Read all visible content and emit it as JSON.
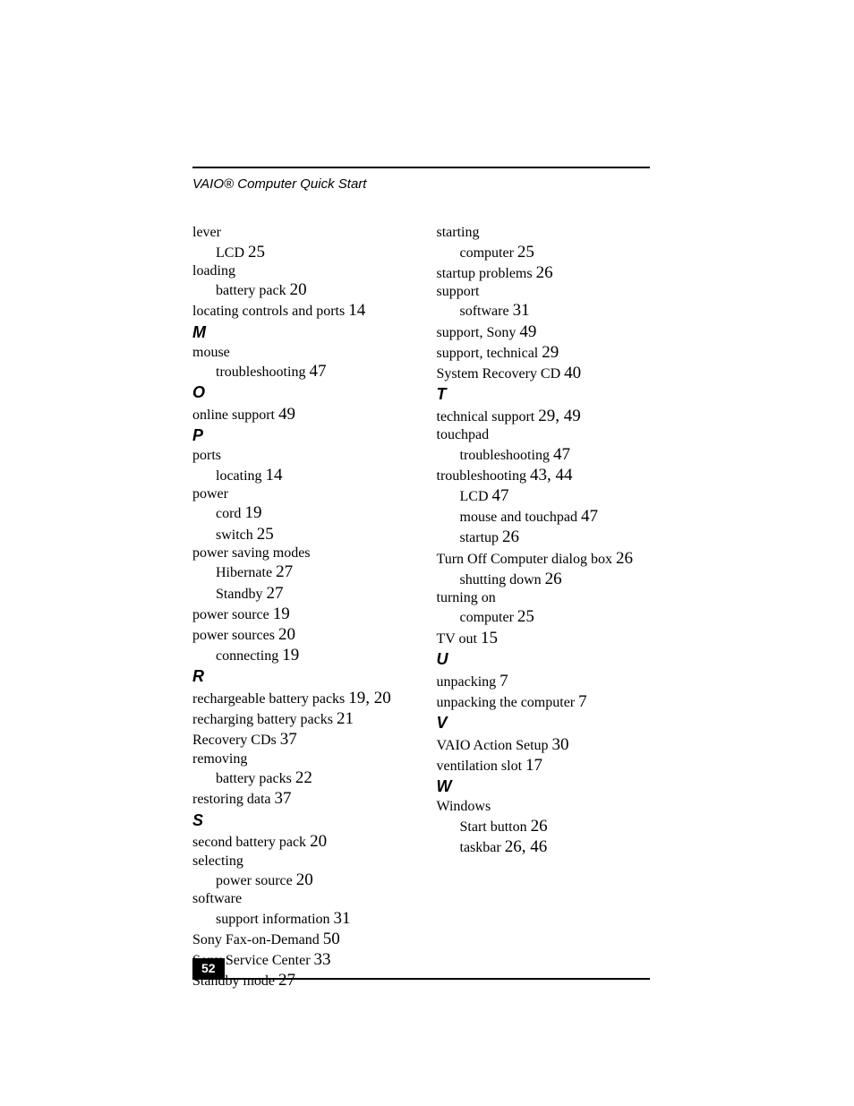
{
  "running_head": "VAIO® Computer Quick Start",
  "page_number": "52",
  "columns": [
    [
      {
        "type": "entry",
        "level": 1,
        "text": "lever"
      },
      {
        "type": "entry",
        "level": 2,
        "text": "LCD",
        "pages": "25"
      },
      {
        "type": "entry",
        "level": 1,
        "text": "loading"
      },
      {
        "type": "entry",
        "level": 2,
        "text": "battery pack",
        "pages": "20"
      },
      {
        "type": "entry",
        "level": 1,
        "text": "locating controls and ports",
        "pages": "14"
      },
      {
        "type": "letter",
        "text": "M"
      },
      {
        "type": "entry",
        "level": 1,
        "text": "mouse"
      },
      {
        "type": "entry",
        "level": 2,
        "text": "troubleshooting",
        "pages": "47"
      },
      {
        "type": "letter",
        "text": "O"
      },
      {
        "type": "entry",
        "level": 1,
        "text": "online support",
        "pages": "49"
      },
      {
        "type": "letter",
        "text": "P"
      },
      {
        "type": "entry",
        "level": 1,
        "text": "ports"
      },
      {
        "type": "entry",
        "level": 2,
        "text": "locating",
        "pages": "14"
      },
      {
        "type": "entry",
        "level": 1,
        "text": "power"
      },
      {
        "type": "entry",
        "level": 2,
        "text": "cord",
        "pages": "19"
      },
      {
        "type": "entry",
        "level": 2,
        "text": "switch",
        "pages": "25"
      },
      {
        "type": "entry",
        "level": 1,
        "text": "power saving modes"
      },
      {
        "type": "entry",
        "level": 2,
        "text": "Hibernate",
        "pages": "27"
      },
      {
        "type": "entry",
        "level": 2,
        "text": "Standby",
        "pages": "27"
      },
      {
        "type": "entry",
        "level": 1,
        "text": "power source",
        "pages": "19"
      },
      {
        "type": "entry",
        "level": 1,
        "text": "power sources",
        "pages": "20"
      },
      {
        "type": "entry",
        "level": 2,
        "text": "connecting",
        "pages": "19"
      },
      {
        "type": "letter",
        "text": "R"
      },
      {
        "type": "entry",
        "level": 1,
        "text": "rechargeable battery packs",
        "pages": "19, 20"
      },
      {
        "type": "entry",
        "level": 1,
        "text": "recharging battery packs",
        "pages": "21"
      },
      {
        "type": "entry",
        "level": 1,
        "text": "Recovery CDs",
        "pages": "37"
      },
      {
        "type": "entry",
        "level": 1,
        "text": "removing"
      },
      {
        "type": "entry",
        "level": 2,
        "text": "battery packs",
        "pages": "22"
      },
      {
        "type": "entry",
        "level": 1,
        "text": "restoring data",
        "pages": "37"
      },
      {
        "type": "letter",
        "text": "S"
      },
      {
        "type": "entry",
        "level": 1,
        "text": "second battery pack",
        "pages": "20"
      },
      {
        "type": "entry",
        "level": 1,
        "text": "selecting"
      },
      {
        "type": "entry",
        "level": 2,
        "text": "power source",
        "pages": "20"
      },
      {
        "type": "entry",
        "level": 1,
        "text": "software"
      },
      {
        "type": "entry",
        "level": 2,
        "text": "support information",
        "pages": "31"
      },
      {
        "type": "entry",
        "level": 1,
        "text": "Sony Fax-on-Demand",
        "pages": "50"
      },
      {
        "type": "entry",
        "level": 1,
        "text": "Sony Service Center",
        "pages": "33"
      },
      {
        "type": "entry",
        "level": 1,
        "text": "Standby mode",
        "pages": "27"
      }
    ],
    [
      {
        "type": "entry",
        "level": 1,
        "text": "starting"
      },
      {
        "type": "entry",
        "level": 2,
        "text": "computer",
        "pages": "25"
      },
      {
        "type": "entry",
        "level": 1,
        "text": "startup problems",
        "pages": "26"
      },
      {
        "type": "entry",
        "level": 1,
        "text": "support"
      },
      {
        "type": "entry",
        "level": 2,
        "text": "software",
        "pages": "31"
      },
      {
        "type": "entry",
        "level": 1,
        "text": "support, Sony",
        "pages": "49"
      },
      {
        "type": "entry",
        "level": 1,
        "text": "support, technical",
        "pages": "29"
      },
      {
        "type": "entry",
        "level": 1,
        "text": "System Recovery CD",
        "pages": "40"
      },
      {
        "type": "letter",
        "text": "T"
      },
      {
        "type": "entry",
        "level": 1,
        "text": "technical support",
        "pages": "29, 49"
      },
      {
        "type": "entry",
        "level": 1,
        "text": "touchpad"
      },
      {
        "type": "entry",
        "level": 2,
        "text": "troubleshooting",
        "pages": "47"
      },
      {
        "type": "entry",
        "level": 1,
        "text": "troubleshooting",
        "pages": "43, 44"
      },
      {
        "type": "entry",
        "level": 2,
        "text": "LCD",
        "pages": "47"
      },
      {
        "type": "entry",
        "level": 2,
        "text": "mouse and touchpad",
        "pages": "47"
      },
      {
        "type": "entry",
        "level": 2,
        "text": "startup",
        "pages": "26"
      },
      {
        "type": "entry",
        "level": 1,
        "text": "Turn Off Computer dialog box",
        "pages": "26"
      },
      {
        "type": "entry",
        "level": 2,
        "text": "shutting down",
        "pages": "26"
      },
      {
        "type": "entry",
        "level": 1,
        "text": "turning on"
      },
      {
        "type": "entry",
        "level": 2,
        "text": "computer",
        "pages": "25"
      },
      {
        "type": "entry",
        "level": 1,
        "text": "TV out",
        "pages": "15"
      },
      {
        "type": "letter",
        "text": "U"
      },
      {
        "type": "entry",
        "level": 1,
        "text": "unpacking",
        "pages": "7"
      },
      {
        "type": "entry",
        "level": 1,
        "text": "unpacking the computer",
        "pages": "7"
      },
      {
        "type": "letter",
        "text": "V"
      },
      {
        "type": "entry",
        "level": 1,
        "text": "VAIO Action Setup",
        "pages": "30"
      },
      {
        "type": "entry",
        "level": 1,
        "text": "ventilation slot",
        "pages": "17"
      },
      {
        "type": "letter",
        "text": "W"
      },
      {
        "type": "entry",
        "level": 1,
        "text": "Windows"
      },
      {
        "type": "entry",
        "level": 2,
        "text": "Start button",
        "pages": "26"
      },
      {
        "type": "entry",
        "level": 2,
        "text": "taskbar",
        "pages": "26, 46"
      }
    ]
  ]
}
